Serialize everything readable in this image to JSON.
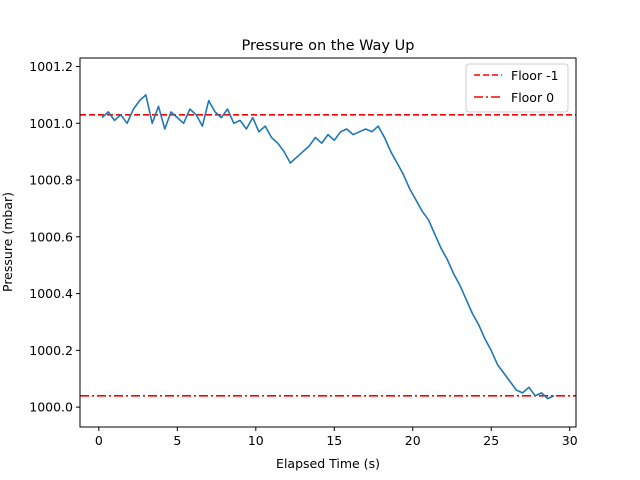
{
  "chart_data": {
    "type": "line",
    "title": "Pressure on the Way Up",
    "xlabel": "Elapsed Time (s)",
    "ylabel": "Pressure (mbar)",
    "xlim": [
      -1.2,
      30.4
    ],
    "ylim": [
      999.93,
      1001.23
    ],
    "xticks": [
      0,
      5,
      10,
      15,
      20,
      25,
      30
    ],
    "xtick_labels": [
      "0",
      "5",
      "10",
      "15",
      "20",
      "25",
      "30"
    ],
    "yticks": [
      1000.0,
      1000.2,
      1000.4,
      1000.6,
      1000.8,
      1001.0,
      1001.2
    ],
    "ytick_labels": [
      "1000.0",
      "1000.2",
      "1000.4",
      "1000.6",
      "1000.8",
      "1001.0",
      "1001.2"
    ],
    "grid": false,
    "legend_position": "top-right",
    "series": [
      {
        "color": "#1f77b4",
        "x": [
          0.2,
          0.6,
          1.0,
          1.4,
          1.8,
          2.2,
          2.6,
          3.0,
          3.4,
          3.8,
          4.2,
          4.6,
          5.0,
          5.4,
          5.8,
          6.2,
          6.6,
          7.0,
          7.4,
          7.8,
          8.2,
          8.6,
          9.0,
          9.4,
          9.8,
          10.2,
          10.6,
          11.0,
          11.4,
          11.8,
          12.2,
          12.6,
          13.0,
          13.4,
          13.8,
          14.2,
          14.6,
          15.0,
          15.4,
          15.8,
          16.2,
          16.6,
          17.0,
          17.4,
          17.8,
          18.2,
          18.6,
          19.0,
          19.4,
          19.8,
          20.2,
          20.6,
          21.0,
          21.4,
          21.8,
          22.2,
          22.6,
          23.0,
          23.4,
          23.8,
          24.2,
          24.6,
          25.0,
          25.4,
          25.8,
          26.2,
          26.6,
          27.0,
          27.4,
          27.8,
          28.2,
          28.6,
          29.0
        ],
        "values": [
          1001.02,
          1001.04,
          1001.01,
          1001.03,
          1001.0,
          1001.05,
          1001.08,
          1001.1,
          1001.0,
          1001.06,
          1000.98,
          1001.04,
          1001.02,
          1001.0,
          1001.05,
          1001.03,
          1000.99,
          1001.08,
          1001.04,
          1001.02,
          1001.05,
          1001.0,
          1001.01,
          1000.98,
          1001.02,
          1000.97,
          1000.99,
          1000.95,
          1000.93,
          1000.9,
          1000.86,
          1000.88,
          1000.9,
          1000.92,
          1000.95,
          1000.93,
          1000.96,
          1000.94,
          1000.97,
          1000.98,
          1000.96,
          1000.97,
          1000.98,
          1000.97,
          1000.99,
          1000.95,
          1000.9,
          1000.86,
          1000.82,
          1000.77,
          1000.73,
          1000.69,
          1000.66,
          1000.61,
          1000.56,
          1000.52,
          1000.47,
          1000.43,
          1000.38,
          1000.33,
          1000.29,
          1000.24,
          1000.2,
          1000.15,
          1000.12,
          1000.09,
          1000.06,
          1000.05,
          1000.07,
          1000.04,
          1000.05,
          1000.03,
          1000.04
        ]
      }
    ],
    "reference_lines": [
      {
        "name": "Floor -1",
        "y": 1001.03,
        "color": "#ff0000",
        "style": "dashed"
      },
      {
        "name": "Floor 0",
        "y": 1000.04,
        "color": "#ff0000",
        "style": "dashdot"
      }
    ]
  }
}
